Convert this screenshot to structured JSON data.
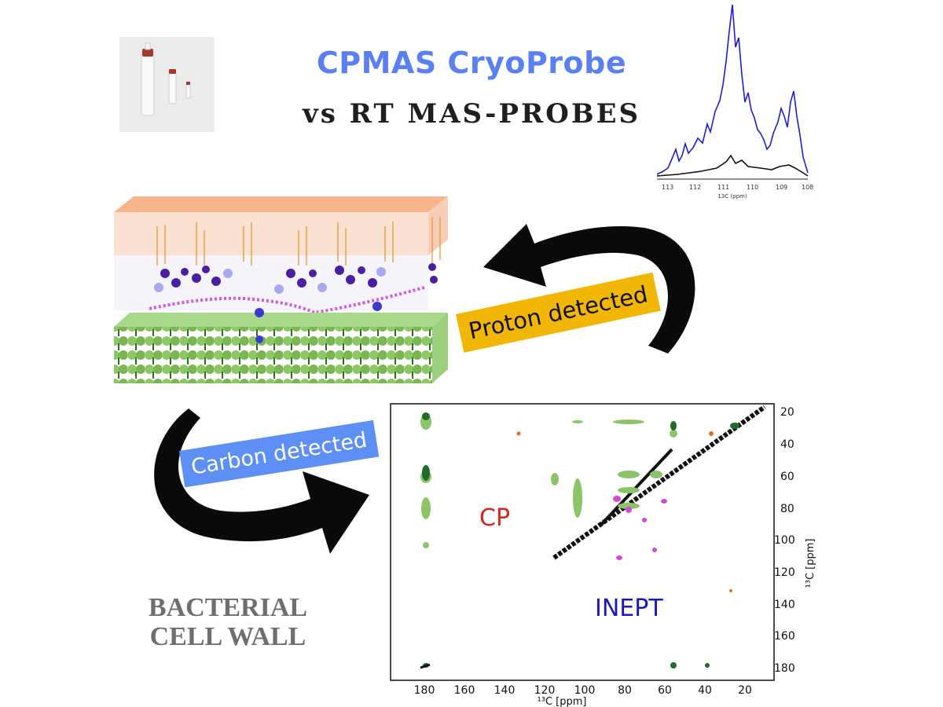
{
  "title": "CPMAS CryoProbe",
  "subtitle": "vs RT MAS-PROBES",
  "labels": {
    "proton": "Proton detected",
    "carbon": "Carbon detected"
  },
  "footer": {
    "line1": "BACTERIAL",
    "line2": "CELL WALL"
  },
  "spectrum_1d": {
    "x_ticks": [
      "113",
      "112",
      "111",
      "110",
      "109",
      "108"
    ],
    "xlabel": "13C (ppm)",
    "colors": {
      "cryoprobe": "#1f1fd0",
      "rt_probe": "#111111"
    }
  },
  "spectrum_2d": {
    "x_ticks": [
      "180",
      "160",
      "140",
      "120",
      "100",
      "80",
      "60",
      "40",
      "20"
    ],
    "y_ticks": [
      "20",
      "40",
      "60",
      "80",
      "100",
      "120",
      "140",
      "160",
      "180"
    ],
    "xlabel": "¹³C [ppm]",
    "ylabel": "¹³C [ppm]",
    "regions": {
      "cp": "CP",
      "inept": "INEPT"
    },
    "colors": {
      "cp": "#d9261c",
      "inept": "#1a1ab8",
      "contour_green": "#8cc46a",
      "contour_dark": "#1f6b2a",
      "contour_magenta": "#d24ad6",
      "diagonal": "#111111"
    }
  },
  "colors": {
    "title": "#5b80f2",
    "proton_label_bg": "#f2b705",
    "carbon_label_bg": "#5d8ff5"
  }
}
